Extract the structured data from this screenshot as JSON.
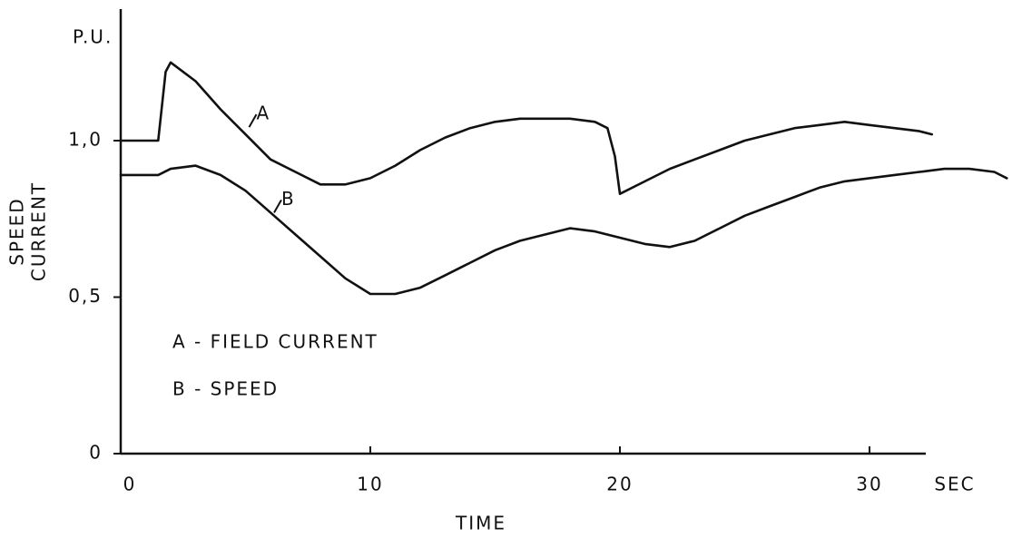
{
  "chart_data": {
    "type": "line",
    "ylabel_unit": "P.U.",
    "ylabel": [
      "SPEED",
      "CURRENT"
    ],
    "xlabel": "TIME",
    "xlabel_unit": "SEC",
    "xlim": [
      0,
      35.8
    ],
    "ylim": [
      0,
      1.42
    ],
    "xticks": [
      0,
      10,
      20,
      30
    ],
    "yticks": [
      0,
      {
        "value": 0.5,
        "label": "0,5"
      },
      {
        "value": 1.0,
        "label": "1,0"
      }
    ],
    "series": [
      {
        "name": "A - FIELD CURRENT",
        "label": "A",
        "color": "#111111",
        "x": [
          0,
          1.5,
          1.8,
          2,
          3,
          4,
          5,
          6,
          7,
          8,
          9,
          10,
          11,
          12,
          13,
          14,
          15,
          16,
          17,
          18,
          19,
          19.5,
          19.8,
          20,
          21,
          22,
          23,
          24,
          25,
          26,
          27,
          28,
          29,
          30,
          31,
          32,
          32.5
        ],
        "values": [
          1.0,
          1.0,
          1.22,
          1.25,
          1.19,
          1.1,
          1.02,
          0.94,
          0.9,
          0.86,
          0.86,
          0.88,
          0.92,
          0.97,
          1.01,
          1.04,
          1.06,
          1.07,
          1.07,
          1.07,
          1.06,
          1.04,
          0.95,
          0.83,
          0.87,
          0.91,
          0.94,
          0.97,
          1.0,
          1.02,
          1.04,
          1.05,
          1.06,
          1.05,
          1.04,
          1.03,
          1.02
        ]
      },
      {
        "name": "B - SPEED",
        "label": "B",
        "color": "#111111",
        "x": [
          0,
          1.5,
          2,
          3,
          4,
          5,
          6,
          7,
          8,
          9,
          10,
          11,
          12,
          13,
          14,
          15,
          16,
          17,
          18,
          19,
          20,
          21,
          22,
          23,
          24,
          25,
          26,
          27,
          28,
          29,
          30,
          31,
          32,
          33,
          34,
          35,
          35.5
        ],
        "values": [
          0.89,
          0.89,
          0.91,
          0.92,
          0.89,
          0.84,
          0.77,
          0.7,
          0.63,
          0.56,
          0.51,
          0.51,
          0.53,
          0.57,
          0.61,
          0.65,
          0.68,
          0.7,
          0.72,
          0.71,
          0.69,
          0.67,
          0.66,
          0.68,
          0.72,
          0.76,
          0.79,
          0.82,
          0.85,
          0.87,
          0.88,
          0.89,
          0.9,
          0.91,
          0.91,
          0.9,
          0.88
        ]
      }
    ]
  }
}
